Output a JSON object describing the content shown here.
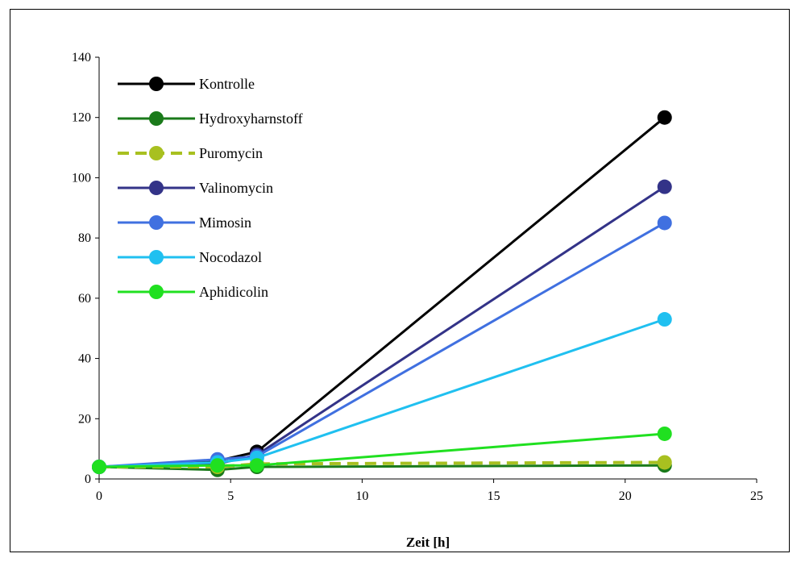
{
  "chart_data": {
    "type": "line",
    "title": "",
    "xlabel": "Zeit [h]",
    "ylabel": "",
    "xlim": [
      0,
      25
    ],
    "ylim": [
      0,
      140
    ],
    "xticks": [
      0,
      5,
      10,
      15,
      20,
      25
    ],
    "yticks": [
      0,
      20,
      40,
      60,
      80,
      100,
      120,
      140
    ],
    "grid": false,
    "legend_position": "top-left",
    "x": [
      0,
      4.5,
      6,
      21.5
    ],
    "series": [
      {
        "name": "Kontrolle",
        "color": "#000000",
        "dash": "solid",
        "values": [
          4,
          6,
          9,
          120
        ]
      },
      {
        "name": "Hydroxyharnstoff",
        "color": "#1a7a1a",
        "dash": "solid",
        "values": [
          4,
          3,
          4,
          4.5
        ]
      },
      {
        "name": "Puromycin",
        "color": "#a8c020",
        "dash": "dashed",
        "values": [
          4,
          4,
          5,
          5.5
        ]
      },
      {
        "name": "Valinomycin",
        "color": "#333388",
        "dash": "solid",
        "values": [
          4,
          5,
          8,
          97
        ]
      },
      {
        "name": "Mimosin",
        "color": "#4070e0",
        "dash": "solid",
        "values": [
          4,
          6.5,
          7.5,
          85
        ]
      },
      {
        "name": "Nocodazol",
        "color": "#20c0f0",
        "dash": "solid",
        "values": [
          4,
          5.5,
          7,
          53
        ]
      },
      {
        "name": "Aphidicolin",
        "color": "#20e020",
        "dash": "solid",
        "values": [
          4,
          4.5,
          4.5,
          15
        ]
      }
    ]
  }
}
